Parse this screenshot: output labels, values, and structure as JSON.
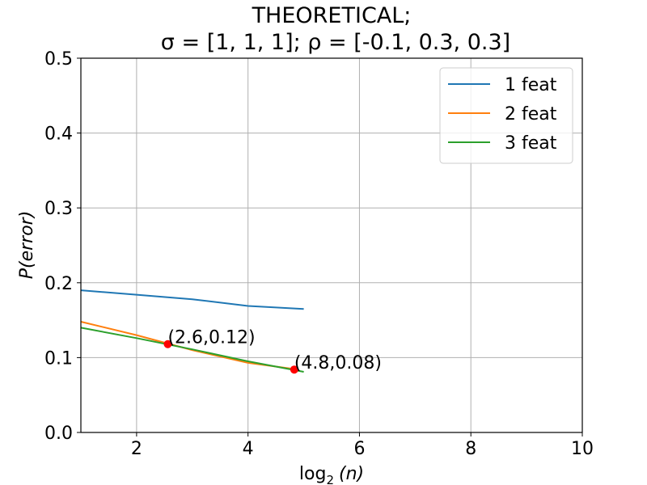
{
  "chart_data": {
    "type": "line",
    "title_line1": "THEORETICAL;",
    "title_line2": "σ = [1, 1, 1];  ρ = [-0.1, 0.3, 0.3]",
    "xlabel_base": "log",
    "xlabel_sub": "2",
    "xlabel_arg": "(n)",
    "ylabel": "P(error)",
    "xlim": [
      1,
      10
    ],
    "ylim": [
      0,
      0.5
    ],
    "x_ticks": [
      2,
      4,
      6,
      8,
      10
    ],
    "x_tick_labels": [
      "2",
      "4",
      "6",
      "8",
      "10"
    ],
    "y_ticks": [
      0.0,
      0.1,
      0.2,
      0.3,
      0.4,
      0.5
    ],
    "y_tick_labels": [
      "0.0",
      "0.1",
      "0.2",
      "0.3",
      "0.4",
      "0.5"
    ],
    "grid": true,
    "legend_position": "top-right",
    "series": [
      {
        "name": "1 feat",
        "color": "#1f77b4",
        "x": [
          1,
          2,
          3,
          4,
          5
        ],
        "y": [
          0.19,
          0.184,
          0.178,
          0.169,
          0.165
        ]
      },
      {
        "name": "2 feat",
        "color": "#ff7f0e",
        "x": [
          1,
          2,
          3,
          4,
          4.8
        ],
        "y": [
          0.148,
          0.13,
          0.11,
          0.093,
          0.085
        ]
      },
      {
        "name": "3 feat",
        "color": "#2ca02c",
        "x": [
          1,
          2,
          3,
          4,
          5
        ],
        "y": [
          0.14,
          0.126,
          0.111,
          0.095,
          0.081
        ]
      }
    ],
    "annotations": [
      {
        "x": 2.56,
        "y": 0.118,
        "label": "(2.6,0.12)",
        "color": "#ff0000"
      },
      {
        "x": 4.83,
        "y": 0.084,
        "label": "(4.8,0.08)",
        "color": "#ff0000"
      }
    ]
  }
}
